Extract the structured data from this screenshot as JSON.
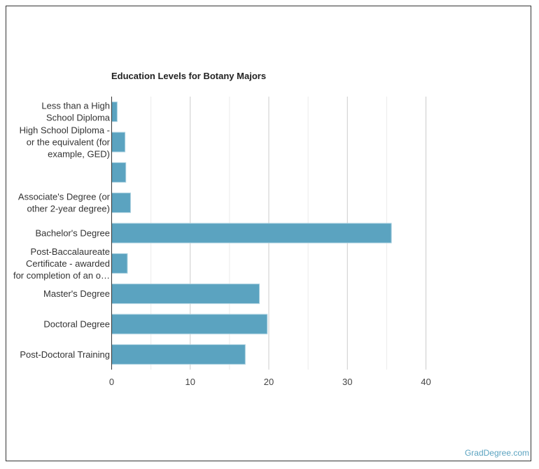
{
  "chart_data": {
    "type": "bar",
    "orientation": "horizontal",
    "title": "Education Levels for Botany Majors",
    "categories": [
      [
        "Less than a High",
        "School Diploma"
      ],
      [
        "High School Diploma -",
        "or the equivalent (for",
        "example, GED)"
      ],
      [],
      [
        "Associate's Degree (or",
        "other 2-year degree)"
      ],
      [
        "Bachelor's Degree"
      ],
      [
        "Post-Baccalaureate",
        "Certificate - awarded",
        "for completion of an o…"
      ],
      [
        "Master's Degree"
      ],
      [
        "Doctoral Degree"
      ],
      [
        "Post-Doctoral Training"
      ]
    ],
    "values": [
      0.7,
      1.7,
      1.8,
      2.4,
      35.6,
      2.0,
      18.8,
      19.8,
      17.0
    ],
    "xlim": [
      0,
      40
    ],
    "xticks": [
      "0",
      "10",
      "20",
      "30",
      "40"
    ],
    "grid": true,
    "bar_color": "#5ba3c0"
  },
  "footer": "GradDegree.com"
}
